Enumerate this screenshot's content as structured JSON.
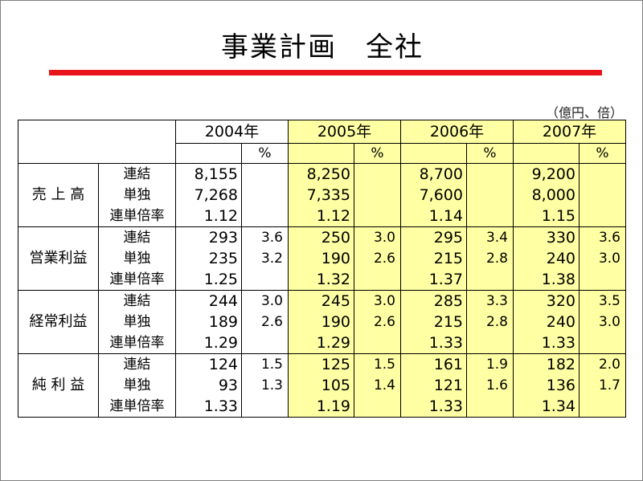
{
  "title": "事業計画　全社",
  "unit_note": "（億円、倍）",
  "years": [
    "2004年",
    "2005年",
    "2006年",
    "2007年"
  ],
  "pct_label": "%",
  "sub_labels": [
    "連結",
    "単独",
    "連単倍率"
  ],
  "categories": [
    {
      "label": "売 上 高",
      "rows": [
        [
          [
            "8,155",
            ""
          ],
          [
            "8,250",
            ""
          ],
          [
            "8,700",
            ""
          ],
          [
            "9,200",
            ""
          ]
        ],
        [
          [
            "7,268",
            ""
          ],
          [
            "7,335",
            ""
          ],
          [
            "7,600",
            ""
          ],
          [
            "8,000",
            ""
          ]
        ],
        [
          [
            "1.12",
            ""
          ],
          [
            "1.12",
            ""
          ],
          [
            "1.14",
            ""
          ],
          [
            "1.15",
            ""
          ]
        ]
      ]
    },
    {
      "label": "営業利益",
      "rows": [
        [
          [
            "293",
            "3.6"
          ],
          [
            "250",
            "3.0"
          ],
          [
            "295",
            "3.4"
          ],
          [
            "330",
            "3.6"
          ]
        ],
        [
          [
            "235",
            "3.2"
          ],
          [
            "190",
            "2.6"
          ],
          [
            "215",
            "2.8"
          ],
          [
            "240",
            "3.0"
          ]
        ],
        [
          [
            "1.25",
            ""
          ],
          [
            "1.32",
            ""
          ],
          [
            "1.37",
            ""
          ],
          [
            "1.38",
            ""
          ]
        ]
      ]
    },
    {
      "label": "経常利益",
      "rows": [
        [
          [
            "244",
            "3.0"
          ],
          [
            "245",
            "3.0"
          ],
          [
            "285",
            "3.3"
          ],
          [
            "320",
            "3.5"
          ]
        ],
        [
          [
            "189",
            "2.6"
          ],
          [
            "190",
            "2.6"
          ],
          [
            "215",
            "2.8"
          ],
          [
            "240",
            "3.0"
          ]
        ],
        [
          [
            "1.29",
            ""
          ],
          [
            "1.29",
            ""
          ],
          [
            "1.33",
            ""
          ],
          [
            "1.33",
            ""
          ]
        ]
      ]
    },
    {
      "label": "純 利 益",
      "rows": [
        [
          [
            "124",
            "1.5"
          ],
          [
            "125",
            "1.5"
          ],
          [
            "161",
            "1.9"
          ],
          [
            "182",
            "2.0"
          ]
        ],
        [
          [
            "93",
            "1.3"
          ],
          [
            "105",
            "1.4"
          ],
          [
            "121",
            "1.6"
          ],
          [
            "136",
            "1.7"
          ]
        ],
        [
          [
            "1.33",
            ""
          ],
          [
            "1.19",
            ""
          ],
          [
            "1.33",
            ""
          ],
          [
            "1.34",
            ""
          ]
        ]
      ]
    }
  ],
  "colors": {
    "rule": "#e8141a",
    "highlight": "#ffffa3"
  }
}
